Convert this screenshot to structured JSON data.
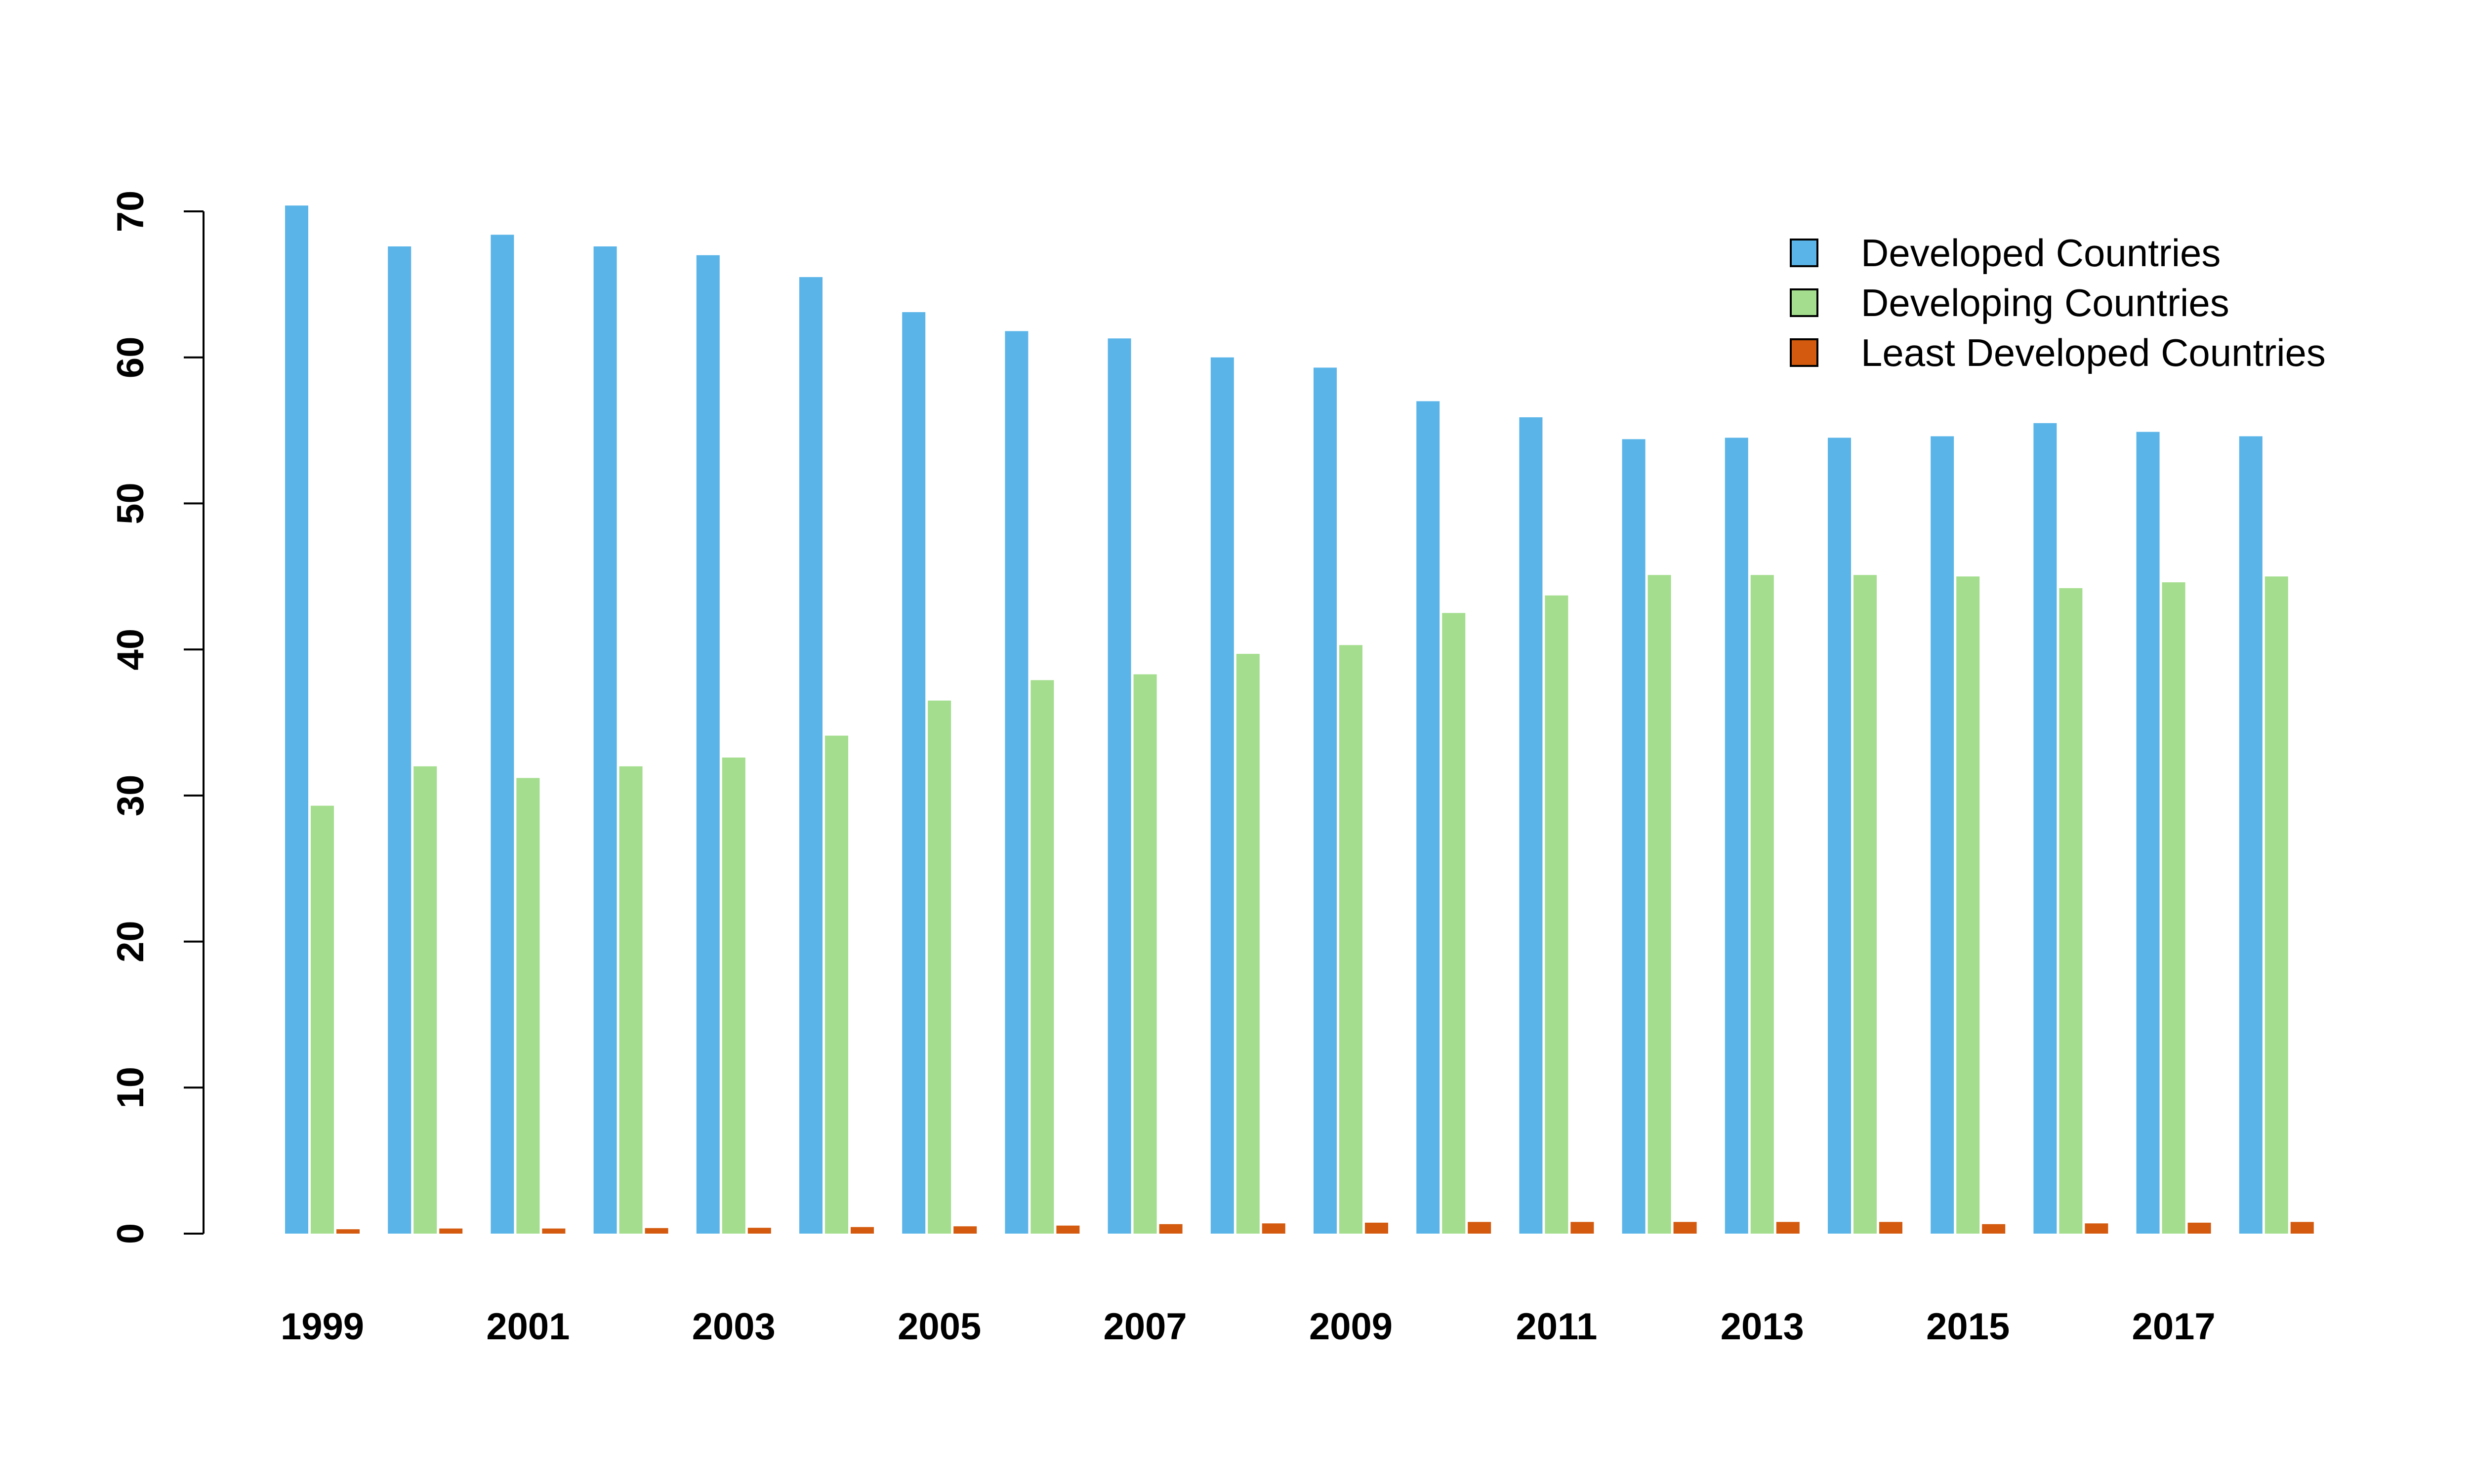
{
  "chart_data": {
    "type": "bar",
    "title": "",
    "xlabel": "",
    "ylabel": "",
    "categories": [
      "1999",
      "2000",
      "2001",
      "2002",
      "2003",
      "2004",
      "2005",
      "2006",
      "2007",
      "2008",
      "2009",
      "2010",
      "2011",
      "2012",
      "2013",
      "2014",
      "2015",
      "2016",
      "2017",
      "2018"
    ],
    "tick_labels": [
      "1999",
      "2001",
      "2003",
      "2005",
      "2007",
      "2009",
      "2011",
      "2013",
      "2015",
      "2017"
    ],
    "yticks": [
      0,
      10,
      20,
      30,
      40,
      50,
      60,
      70
    ],
    "ylim": [
      0,
      70
    ],
    "grid": false,
    "legend_position": "top-right",
    "series": [
      {
        "name": "Developed Countries",
        "color": "#5ab4e8",
        "values": [
          70.4,
          67.6,
          68.4,
          67.6,
          67.0,
          65.5,
          63.1,
          61.8,
          61.3,
          60.0,
          59.3,
          57.0,
          55.9,
          54.4,
          54.5,
          54.5,
          54.6,
          55.5,
          54.9,
          54.6
        ]
      },
      {
        "name": "Developing Countries",
        "color": "#a3dd8d",
        "values": [
          29.3,
          32.0,
          31.2,
          32.0,
          32.6,
          34.1,
          36.5,
          37.9,
          38.3,
          39.7,
          40.3,
          42.5,
          43.7,
          45.1,
          45.1,
          45.1,
          45.0,
          44.2,
          44.6,
          45.0
        ]
      },
      {
        "name": "Least Developed Countries",
        "color": "#d35a0e",
        "values": [
          0.3,
          0.35,
          0.35,
          0.38,
          0.4,
          0.45,
          0.5,
          0.55,
          0.65,
          0.7,
          0.75,
          0.8,
          0.8,
          0.8,
          0.8,
          0.8,
          0.65,
          0.7,
          0.75,
          0.8
        ]
      }
    ]
  }
}
